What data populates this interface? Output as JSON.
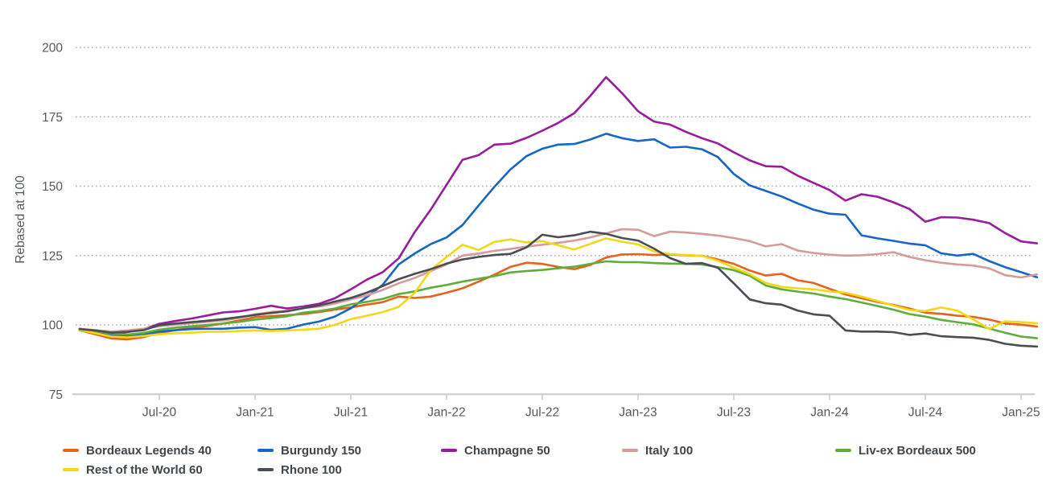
{
  "chart_data": {
    "type": "line",
    "title": "",
    "ylabel": "Rebased at 100",
    "xlabel": "",
    "x_unit": "month",
    "x_range": [
      "Feb-20",
      "Feb-25"
    ],
    "x_tick_labels": [
      "Jul-20",
      "Jan-21",
      "Jul-21",
      "Jan-22",
      "Jul-22",
      "Jan-23",
      "Jul-23",
      "Jan-24",
      "Jul-24",
      "Jan-25"
    ],
    "x_tick_months": [
      6,
      12,
      18,
      24,
      30,
      36,
      42,
      48,
      54,
      60
    ],
    "y_ticks": [
      200,
      175,
      150,
      125,
      100,
      75
    ],
    "ylim": [
      75,
      205
    ],
    "grid": "dotted horizontal lines at 100,125,150,175,200",
    "legend_position": "bottom",
    "series": [
      {
        "name": "Bordeaux Legends 40",
        "color": "#E4631E",
        "values": [
          98.1,
          96.6,
          95.1,
          94.8,
          95.6,
          97.1,
          98.1,
          99.0,
          99.6,
          100.5,
          101.6,
          102.8,
          103.2,
          103.5,
          103.9,
          104.6,
          105.5,
          106.3,
          107.3,
          108.2,
          110.2,
          109.7,
          110.2,
          111.6,
          113.2,
          115.6,
          118.1,
          120.9,
          122.4,
          122.0,
          120.9,
          120.1,
          121.6,
          124.3,
          125.4,
          125.5,
          125.2,
          125.4,
          125.1,
          124.9,
          123.6,
          122.0,
          119.6,
          117.8,
          118.4,
          116.1,
          115.1,
          113.0,
          111.0,
          109.6,
          108.3,
          107.2,
          105.9,
          104.4,
          104.0,
          103.3,
          102.9,
          101.9,
          100.5,
          100.1,
          99.4
        ]
      },
      {
        "name": "Burgundy 150",
        "color": "#1766C4",
        "values": [
          98.4,
          97.2,
          96.2,
          96.0,
          96.6,
          97.6,
          98.1,
          98.5,
          98.6,
          98.6,
          99.0,
          99.2,
          98.2,
          98.6,
          100.1,
          101.2,
          103.0,
          106.0,
          110.0,
          114.5,
          121.8,
          125.7,
          129.1,
          131.5,
          136.0,
          143.0,
          149.8,
          156.0,
          160.8,
          163.5,
          165.0,
          165.2,
          166.8,
          168.9,
          167.3,
          166.3,
          166.9,
          163.9,
          164.2,
          163.3,
          160.5,
          154.4,
          150.3,
          148.3,
          146.3,
          143.8,
          141.5,
          140.1,
          139.7,
          132.3,
          131.2,
          130.3,
          129.3,
          128.7,
          125.8,
          125.0,
          125.6,
          123.0,
          120.8,
          119.0,
          117.2
        ]
      },
      {
        "name": "Champagne 50",
        "color": "#9B1B9E",
        "values": [
          98.3,
          97.4,
          96.9,
          97.4,
          98.4,
          100.4,
          101.4,
          102.3,
          103.4,
          104.5,
          104.9,
          105.8,
          106.9,
          105.9,
          106.6,
          107.6,
          109.6,
          112.8,
          116.3,
          119.0,
          124.0,
          133.4,
          141.5,
          150.5,
          159.5,
          161.2,
          165.0,
          165.3,
          167.4,
          170.0,
          172.8,
          176.3,
          182.5,
          189.3,
          183.5,
          177.0,
          173.3,
          172.2,
          169.6,
          167.3,
          165.4,
          162.2,
          159.3,
          157.2,
          157.0,
          153.8,
          151.2,
          148.6,
          144.8,
          147.1,
          146.2,
          144.2,
          141.8,
          137.2,
          138.8,
          138.7,
          137.9,
          136.7,
          133.1,
          130.1,
          129.4
        ]
      },
      {
        "name": "Italy 100",
        "color": "#D79A9A",
        "values": [
          98.6,
          98.1,
          97.6,
          98.0,
          98.6,
          99.5,
          100.1,
          100.6,
          101.1,
          101.6,
          102.5,
          103.8,
          104.6,
          105.1,
          106.1,
          106.6,
          107.7,
          109.2,
          110.6,
          112.6,
          115.0,
          116.9,
          119.4,
          121.8,
          125.0,
          125.7,
          126.7,
          127.4,
          128.2,
          128.9,
          129.6,
          130.4,
          131.5,
          133.0,
          134.5,
          134.3,
          132.0,
          133.6,
          133.3,
          132.8,
          132.2,
          131.3,
          130.2,
          128.3,
          129.1,
          126.8,
          125.9,
          125.3,
          125.0,
          125.1,
          125.5,
          126.2,
          124.5,
          123.3,
          122.4,
          121.8,
          121.4,
          120.4,
          117.9,
          117.1,
          118.2
        ]
      },
      {
        "name": "Liv-ex Bordeaux 500",
        "color": "#5FAE3C",
        "values": [
          98.6,
          97.8,
          96.8,
          96.5,
          97.1,
          98.3,
          99.0,
          99.5,
          100.0,
          100.5,
          101.1,
          101.9,
          102.5,
          103.1,
          104.4,
          105.0,
          105.9,
          107.4,
          108.3,
          109.4,
          111.1,
          112.1,
          113.4,
          114.4,
          115.6,
          116.6,
          117.6,
          118.9,
          119.4,
          119.8,
          120.4,
          121.0,
          122.0,
          122.9,
          122.6,
          122.6,
          122.3,
          122.1,
          122.0,
          121.8,
          120.8,
          119.7,
          117.7,
          114.2,
          112.8,
          112.0,
          111.3,
          110.2,
          109.3,
          108.1,
          106.8,
          105.5,
          103.9,
          103.0,
          101.8,
          101.0,
          100.2,
          98.7,
          97.2,
          95.8,
          95.2
        ]
      },
      {
        "name": "Rest of the World 60",
        "color": "#F3D816",
        "values": [
          98.2,
          97.0,
          95.8,
          95.5,
          96.0,
          96.6,
          97.0,
          97.2,
          97.5,
          97.5,
          97.8,
          98.0,
          97.8,
          98.0,
          98.3,
          98.6,
          100.0,
          102.1,
          103.3,
          104.6,
          106.5,
          111.5,
          119.7,
          124.5,
          128.9,
          127.0,
          129.9,
          130.8,
          129.7,
          130.2,
          128.7,
          127.2,
          129.2,
          131.2,
          130.0,
          129.0,
          126.5,
          125.5,
          125.2,
          124.9,
          123.1,
          120.6,
          118.3,
          115.1,
          113.7,
          113.2,
          112.8,
          112.1,
          111.6,
          110.2,
          108.6,
          107.0,
          105.4,
          105.0,
          106.3,
          105.2,
          102.0,
          98.5,
          101.3,
          101.0,
          100.6
        ]
      },
      {
        "name": "Rhone 100",
        "color": "#484E54",
        "values": [
          98.5,
          98.0,
          97.2,
          97.5,
          98.1,
          99.9,
          100.5,
          101.0,
          101.5,
          102.1,
          102.8,
          103.6,
          104.3,
          104.9,
          106.0,
          107.0,
          108.4,
          109.7,
          111.6,
          114.0,
          116.5,
          118.4,
          120.1,
          122.1,
          123.6,
          124.5,
          125.2,
          125.6,
          127.9,
          132.5,
          131.6,
          132.3,
          133.6,
          132.8,
          131.3,
          130.4,
          127.5,
          124.1,
          122.0,
          122.3,
          120.6,
          115.0,
          109.2,
          107.8,
          107.3,
          105.2,
          103.8,
          103.3,
          98.0,
          97.6,
          97.6,
          97.4,
          96.4,
          96.9,
          95.9,
          95.6,
          95.4,
          94.6,
          93.2,
          92.5,
          92.2
        ]
      }
    ]
  },
  "colors": {
    "background": "#FFFFFF",
    "axis_text": "#55595C",
    "grid_dots": "#A9ABAD",
    "axis_line": "#C9CBCD",
    "legend_text": "#41464B"
  }
}
